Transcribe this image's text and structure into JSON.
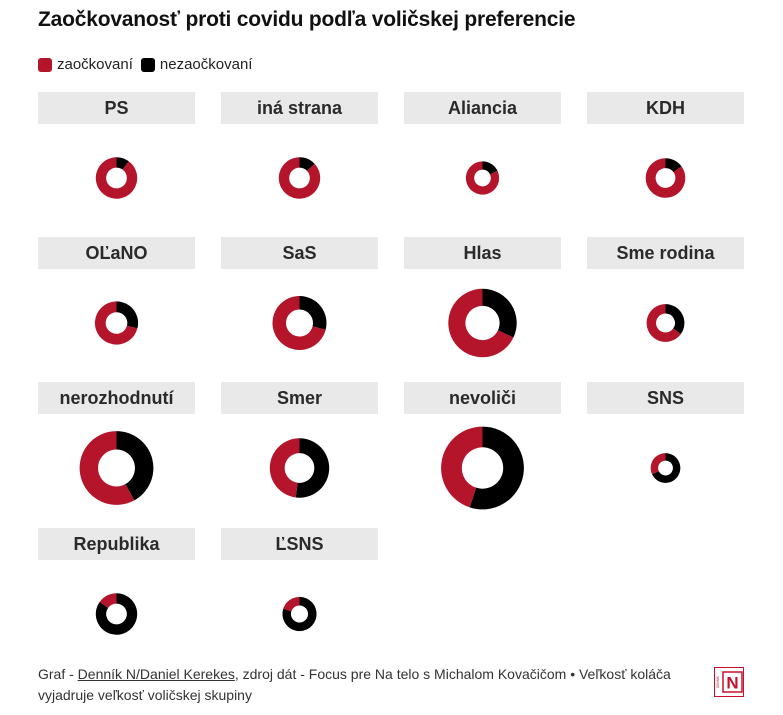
{
  "title": "Zaočkovanosť proti covidu podľa voličskej preferencie",
  "legend": [
    {
      "label": "zaočkovaní",
      "color": "#b5152b"
    },
    {
      "label": "nezaočkovaní",
      "color": "#000000"
    }
  ],
  "colors": {
    "vaccinated": "#b5152b",
    "unvaccinated": "#000000",
    "header_bg": "#e9e9e9"
  },
  "chart_data": {
    "type": "pie",
    "variant": "donut small multiples",
    "title": "Zaočkovanosť proti covidu podľa voličskej preferencie",
    "series_names": [
      "zaočkovaní",
      "nezaočkovaní"
    ],
    "panels": [
      {
        "name": "PS",
        "vaccinated_pct": 90,
        "unvaccinated_pct": 10,
        "relative_size": 0.46
      },
      {
        "name": "iná strana",
        "vaccinated_pct": 87,
        "unvaccinated_pct": 13,
        "relative_size": 0.46
      },
      {
        "name": "Aliancia",
        "vaccinated_pct": 82,
        "unvaccinated_pct": 18,
        "relative_size": 0.37
      },
      {
        "name": "KDH",
        "vaccinated_pct": 85,
        "unvaccinated_pct": 15,
        "relative_size": 0.44
      },
      {
        "name": "OĽaNO",
        "vaccinated_pct": 71,
        "unvaccinated_pct": 29,
        "relative_size": 0.48
      },
      {
        "name": "SaS",
        "vaccinated_pct": 71,
        "unvaccinated_pct": 29,
        "relative_size": 0.6
      },
      {
        "name": "Hlas",
        "vaccinated_pct": 68,
        "unvaccinated_pct": 32,
        "relative_size": 0.76
      },
      {
        "name": "Sme rodina",
        "vaccinated_pct": 65,
        "unvaccinated_pct": 35,
        "relative_size": 0.42
      },
      {
        "name": "nerozhodnutí",
        "vaccinated_pct": 58,
        "unvaccinated_pct": 42,
        "relative_size": 0.82
      },
      {
        "name": "Smer",
        "vaccinated_pct": 48,
        "unvaccinated_pct": 52,
        "relative_size": 0.66
      },
      {
        "name": "nevoliči",
        "vaccinated_pct": 45,
        "unvaccinated_pct": 55,
        "relative_size": 0.92
      },
      {
        "name": "SNS",
        "vaccinated_pct": 32,
        "unvaccinated_pct": 68,
        "relative_size": 0.33
      },
      {
        "name": "Republika",
        "vaccinated_pct": 15,
        "unvaccinated_pct": 85,
        "relative_size": 0.46
      },
      {
        "name": "ĽSNS",
        "vaccinated_pct": 20,
        "unvaccinated_pct": 80,
        "relative_size": 0.38
      }
    ]
  },
  "footer": {
    "prefix": "Graf - ",
    "link": "Denník N/Daniel Kerekes",
    "text": ", zdroj dát - Focus pre Na telo s Michalom Kovačičom • Veľkosť koláča vyjadruje veľkosť voličskej skupiny"
  },
  "logo": {
    "letter": "N",
    "side_text": "DENNÍK"
  }
}
